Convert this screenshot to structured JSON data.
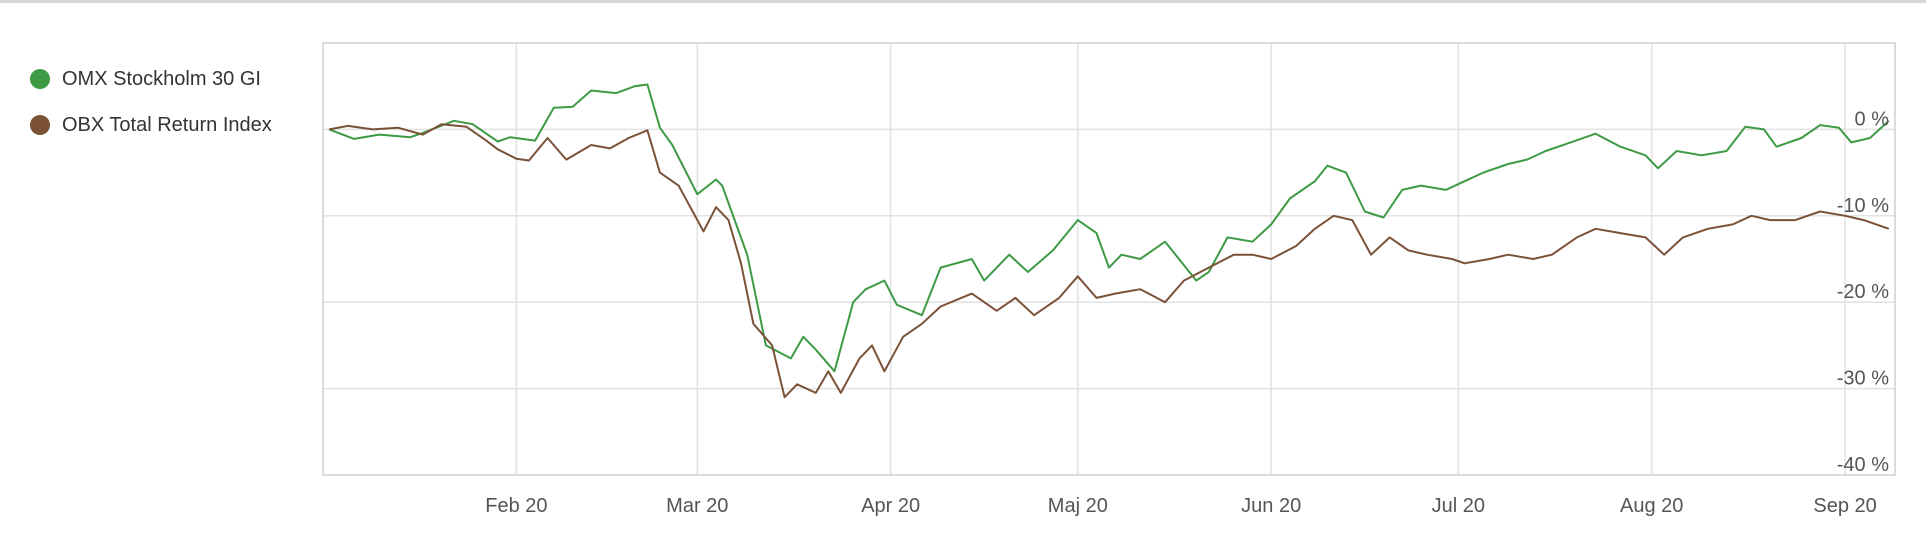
{
  "legend": {
    "items": [
      {
        "label": "OMX Stockholm 30 GI",
        "color": "#3e9a44"
      },
      {
        "label": "OBX Total Return Index",
        "color": "#7b5237"
      }
    ]
  },
  "chart_data": {
    "type": "line",
    "grid": true,
    "legend_position": "top-left",
    "x_ticks": [
      "Feb 20",
      "Mar 20",
      "Apr 20",
      "Maj 20",
      "Jun 20",
      "Jul 20",
      "Aug 20",
      "Sep 20"
    ],
    "y_ticks": [
      "0 %",
      "-10 %",
      "-20 %",
      "-30 %",
      "-40 %"
    ],
    "y_tick_values": [
      0,
      -10,
      -20,
      -30,
      -40
    ],
    "ylim": [
      -40,
      10
    ],
    "series": [
      {
        "name": "OMX Stockholm 30 GI",
        "color": "#3e9a44",
        "points": [
          [
            "2020-01-02",
            0.0
          ],
          [
            "2020-01-06",
            -1.1
          ],
          [
            "2020-01-10",
            -0.6
          ],
          [
            "2020-01-15",
            -0.9
          ],
          [
            "2020-01-17",
            -0.4
          ],
          [
            "2020-01-22",
            1.0
          ],
          [
            "2020-01-25",
            0.6
          ],
          [
            "2020-01-29",
            -1.4
          ],
          [
            "2020-01-31",
            -0.9
          ],
          [
            "2020-02-04",
            -1.3
          ],
          [
            "2020-02-07",
            2.5
          ],
          [
            "2020-02-10",
            2.6
          ],
          [
            "2020-02-13",
            4.5
          ],
          [
            "2020-02-17",
            4.2
          ],
          [
            "2020-02-20",
            5.0
          ],
          [
            "2020-02-22",
            5.2
          ],
          [
            "2020-02-24",
            0.2
          ],
          [
            "2020-02-26",
            -1.8
          ],
          [
            "2020-03-01",
            -7.5
          ],
          [
            "2020-03-04",
            -5.8
          ],
          [
            "2020-03-05",
            -6.5
          ],
          [
            "2020-03-09",
            -14.5
          ],
          [
            "2020-03-12",
            -25.0
          ],
          [
            "2020-03-16",
            -26.5
          ],
          [
            "2020-03-18",
            -24.0
          ],
          [
            "2020-03-20",
            -25.5
          ],
          [
            "2020-03-23",
            -28.0
          ],
          [
            "2020-03-26",
            -20.0
          ],
          [
            "2020-03-28",
            -18.5
          ],
          [
            "2020-03-31",
            -17.5
          ],
          [
            "2020-04-02",
            -20.3
          ],
          [
            "2020-04-06",
            -21.5
          ],
          [
            "2020-04-09",
            -16.0
          ],
          [
            "2020-04-14",
            -15.0
          ],
          [
            "2020-04-16",
            -17.5
          ],
          [
            "2020-04-20",
            -14.5
          ],
          [
            "2020-04-23",
            -16.5
          ],
          [
            "2020-04-27",
            -14.0
          ],
          [
            "2020-05-01",
            -10.5
          ],
          [
            "2020-05-04",
            -12.0
          ],
          [
            "2020-05-06",
            -16.0
          ],
          [
            "2020-05-08",
            -14.5
          ],
          [
            "2020-05-11",
            -15.0
          ],
          [
            "2020-05-15",
            -13.0
          ],
          [
            "2020-05-20",
            -17.5
          ],
          [
            "2020-05-22",
            -16.5
          ],
          [
            "2020-05-25",
            -12.5
          ],
          [
            "2020-05-29",
            -13.0
          ],
          [
            "2020-06-01",
            -11.0
          ],
          [
            "2020-06-04",
            -8.0
          ],
          [
            "2020-06-08",
            -6.0
          ],
          [
            "2020-06-10",
            -4.2
          ],
          [
            "2020-06-13",
            -5.0
          ],
          [
            "2020-06-16",
            -9.5
          ],
          [
            "2020-06-19",
            -10.2
          ],
          [
            "2020-06-22",
            -7.0
          ],
          [
            "2020-06-25",
            -6.5
          ],
          [
            "2020-06-29",
            -7.0
          ],
          [
            "2020-07-02",
            -6.0
          ],
          [
            "2020-07-05",
            -5.0
          ],
          [
            "2020-07-09",
            -4.0
          ],
          [
            "2020-07-12",
            -3.5
          ],
          [
            "2020-07-15",
            -2.5
          ],
          [
            "2020-07-19",
            -1.5
          ],
          [
            "2020-07-23",
            -0.5
          ],
          [
            "2020-07-27",
            -2.0
          ],
          [
            "2020-07-31",
            -3.0
          ],
          [
            "2020-08-02",
            -4.5
          ],
          [
            "2020-08-05",
            -2.5
          ],
          [
            "2020-08-09",
            -3.0
          ],
          [
            "2020-08-13",
            -2.5
          ],
          [
            "2020-08-16",
            0.3
          ],
          [
            "2020-08-19",
            0.0
          ],
          [
            "2020-08-21",
            -2.0
          ],
          [
            "2020-08-25",
            -1.0
          ],
          [
            "2020-08-28",
            0.5
          ],
          [
            "2020-08-31",
            0.2
          ],
          [
            "2020-09-02",
            -1.5
          ],
          [
            "2020-09-05",
            -1.0
          ],
          [
            "2020-09-08",
            1.0
          ]
        ]
      },
      {
        "name": "OBX Total Return Index",
        "color": "#7b5237",
        "points": [
          [
            "2020-01-02",
            0.0
          ],
          [
            "2020-01-05",
            0.4
          ],
          [
            "2020-01-09",
            0.0
          ],
          [
            "2020-01-13",
            0.2
          ],
          [
            "2020-01-17",
            -0.6
          ],
          [
            "2020-01-20",
            0.6
          ],
          [
            "2020-01-24",
            0.3
          ],
          [
            "2020-01-27",
            -1.2
          ],
          [
            "2020-01-29",
            -2.3
          ],
          [
            "2020-02-01",
            -3.4
          ],
          [
            "2020-02-03",
            -3.6
          ],
          [
            "2020-02-06",
            -1.0
          ],
          [
            "2020-02-09",
            -3.5
          ],
          [
            "2020-02-13",
            -1.8
          ],
          [
            "2020-02-16",
            -2.2
          ],
          [
            "2020-02-19",
            -1.0
          ],
          [
            "2020-02-22",
            -0.1
          ],
          [
            "2020-02-24",
            -5.0
          ],
          [
            "2020-02-27",
            -6.5
          ],
          [
            "2020-03-02",
            -11.8
          ],
          [
            "2020-03-04",
            -9.0
          ],
          [
            "2020-03-06",
            -10.5
          ],
          [
            "2020-03-08",
            -15.5
          ],
          [
            "2020-03-10",
            -22.5
          ],
          [
            "2020-03-13",
            -25.0
          ],
          [
            "2020-03-15",
            -31.0
          ],
          [
            "2020-03-17",
            -29.5
          ],
          [
            "2020-03-20",
            -30.5
          ],
          [
            "2020-03-22",
            -28.0
          ],
          [
            "2020-03-24",
            -30.5
          ],
          [
            "2020-03-27",
            -26.5
          ],
          [
            "2020-03-29",
            -25.0
          ],
          [
            "2020-03-31",
            -28.0
          ],
          [
            "2020-04-03",
            -24.0
          ],
          [
            "2020-04-06",
            -22.5
          ],
          [
            "2020-04-09",
            -20.5
          ],
          [
            "2020-04-14",
            -19.0
          ],
          [
            "2020-04-18",
            -21.0
          ],
          [
            "2020-04-21",
            -19.5
          ],
          [
            "2020-04-24",
            -21.5
          ],
          [
            "2020-04-28",
            -19.5
          ],
          [
            "2020-05-01",
            -17.0
          ],
          [
            "2020-05-04",
            -19.5
          ],
          [
            "2020-05-07",
            -19.0
          ],
          [
            "2020-05-11",
            -18.5
          ],
          [
            "2020-05-15",
            -20.0
          ],
          [
            "2020-05-18",
            -17.5
          ],
          [
            "2020-05-22",
            -16.0
          ],
          [
            "2020-05-26",
            -14.5
          ],
          [
            "2020-05-29",
            -14.5
          ],
          [
            "2020-06-01",
            -15.0
          ],
          [
            "2020-06-05",
            -13.5
          ],
          [
            "2020-06-08",
            -11.5
          ],
          [
            "2020-06-11",
            -10.0
          ],
          [
            "2020-06-14",
            -10.5
          ],
          [
            "2020-06-17",
            -14.5
          ],
          [
            "2020-06-20",
            -12.5
          ],
          [
            "2020-06-23",
            -14.0
          ],
          [
            "2020-06-26",
            -14.5
          ],
          [
            "2020-06-30",
            -15.0
          ],
          [
            "2020-07-02",
            -15.5
          ],
          [
            "2020-07-06",
            -15.0
          ],
          [
            "2020-07-09",
            -14.5
          ],
          [
            "2020-07-13",
            -15.0
          ],
          [
            "2020-07-16",
            -14.5
          ],
          [
            "2020-07-20",
            -12.5
          ],
          [
            "2020-07-23",
            -11.5
          ],
          [
            "2020-07-27",
            -12.0
          ],
          [
            "2020-07-31",
            -12.5
          ],
          [
            "2020-08-03",
            -14.5
          ],
          [
            "2020-08-06",
            -12.5
          ],
          [
            "2020-08-10",
            -11.5
          ],
          [
            "2020-08-14",
            -11.0
          ],
          [
            "2020-08-17",
            -10.0
          ],
          [
            "2020-08-20",
            -10.5
          ],
          [
            "2020-08-24",
            -10.5
          ],
          [
            "2020-08-28",
            -9.5
          ],
          [
            "2020-09-01",
            -10.0
          ],
          [
            "2020-09-04",
            -10.5
          ],
          [
            "2020-09-08",
            -11.5
          ]
        ]
      }
    ]
  }
}
